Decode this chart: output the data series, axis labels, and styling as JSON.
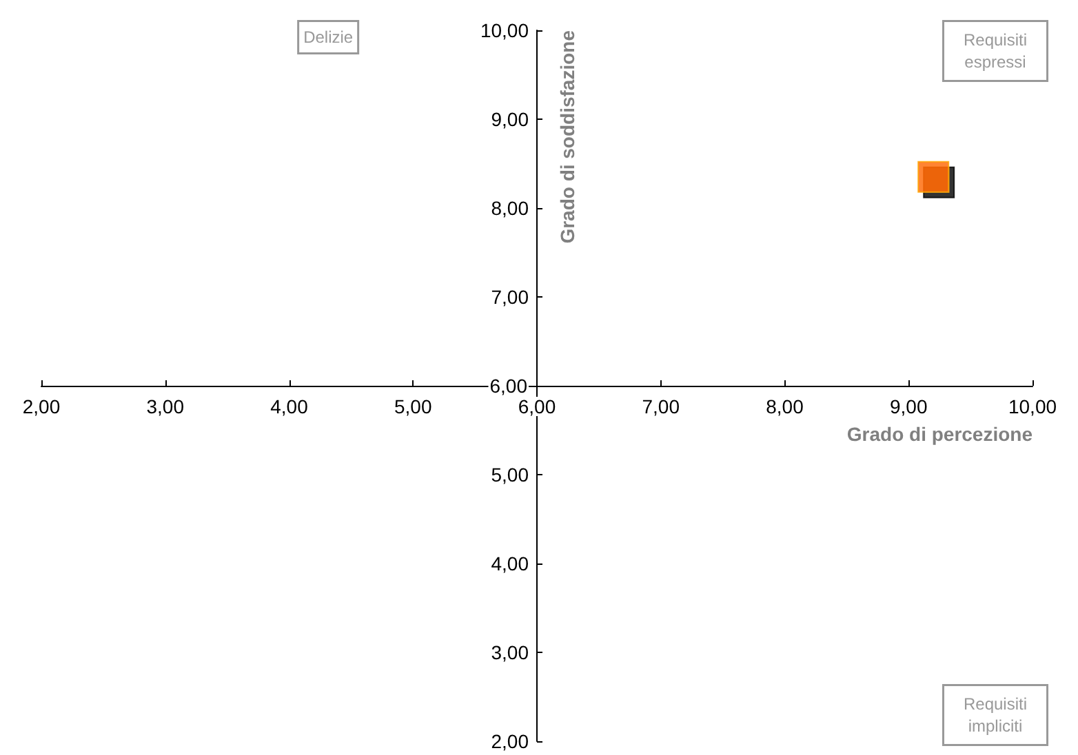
{
  "chart_data": {
    "type": "scatter",
    "xlabel": "Grado di percezione",
    "ylabel": "Grado di soddisfazione",
    "x": [
      9.2
    ],
    "series": [
      {
        "color": "#ff6600",
        "values": [
          8.35
        ]
      }
    ],
    "marker": "square",
    "grid": false,
    "xlim": [
      2,
      10
    ],
    "ylim": [
      2,
      10
    ],
    "xticks": [
      {
        "value": 2,
        "label": "2,00"
      },
      {
        "value": 3,
        "label": "3,00"
      },
      {
        "value": 4,
        "label": "4,00"
      },
      {
        "value": 5,
        "label": "5,00"
      },
      {
        "value": 6,
        "label": "6,00"
      },
      {
        "value": 7,
        "label": "7,00"
      },
      {
        "value": 8,
        "label": "8,00"
      },
      {
        "value": 9,
        "label": "9,00"
      },
      {
        "value": 10,
        "label": "10,00"
      }
    ],
    "yticks": [
      {
        "value": 2,
        "label": "2,00"
      },
      {
        "value": 3,
        "label": "3,00"
      },
      {
        "value": 4,
        "label": "4,00"
      },
      {
        "value": 5,
        "label": "5,00"
      },
      {
        "value": 6,
        "label": "6,00"
      },
      {
        "value": 7,
        "label": "7,00"
      },
      {
        "value": 8,
        "label": "8,00"
      },
      {
        "value": 9,
        "label": "9,00"
      },
      {
        "value": 10,
        "label": "10,00"
      }
    ],
    "annotations": [
      "Delizie",
      "Requisiti\nespressi",
      "Requisiti\nimpliciti"
    ]
  }
}
